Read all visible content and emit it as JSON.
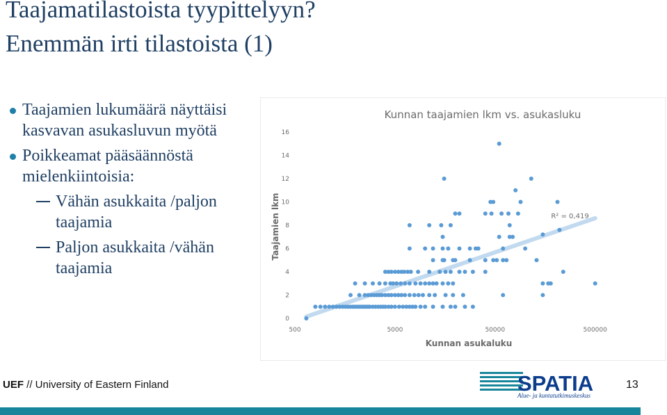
{
  "slide": {
    "title_line1": "Taajamatilastoista tyypittelyyn?",
    "title_line2": "Enemmän irti tilastoista (1)",
    "bullets": [
      "Taajamien lukumäärä näyttäisi kasvavan asukasluvun myötä",
      "Poikkeamat pääsäännöstä mielenkiintoisia:"
    ],
    "sub_bullets": [
      "Vähän asukkaita /paljon taajamia",
      "Paljon asukkaita /vähän taajamia"
    ],
    "footer_bold": "UEF",
    "footer_text": " // University of Eastern Finland",
    "page_number": "13",
    "logo_text": "SPATIA",
    "logo_subtitle": "Alue- ja kuntatutkimuskeskus",
    "colors": {
      "title": "#1f3f63",
      "accent": "#1f7fa9",
      "bar": "#17859a",
      "points": "#5b9bd5"
    }
  },
  "chart_data": {
    "type": "scatter",
    "title": "Kunnan taajamien lkm vs. asukasluku",
    "xlabel": "Kunnan asukaluku",
    "ylabel": "Taajamien lkm",
    "x_scale": "log",
    "xlim": [
      500,
      1000000
    ],
    "ylim": [
      0,
      16
    ],
    "x_ticks": [
      "500",
      "5000",
      "50000",
      "500000"
    ],
    "y_ticks": [
      "0",
      "2",
      "4",
      "6",
      "8",
      "10",
      "12",
      "14",
      "16"
    ],
    "trendline": {
      "type": "logarithmic",
      "r2_label": "R² = 0,419",
      "from": [
        650,
        0.15
      ],
      "to": [
        500000,
        8.6
      ]
    },
    "points": [
      [
        650,
        0
      ],
      [
        800,
        1
      ],
      [
        900,
        1
      ],
      [
        1000,
        1
      ],
      [
        1100,
        1
      ],
      [
        1200,
        1
      ],
      [
        1300,
        1
      ],
      [
        1400,
        1
      ],
      [
        1500,
        1
      ],
      [
        1600,
        1
      ],
      [
        1700,
        1
      ],
      [
        1800,
        1
      ],
      [
        1900,
        1
      ],
      [
        2000,
        1
      ],
      [
        2100,
        1
      ],
      [
        2200,
        1
      ],
      [
        2300,
        1
      ],
      [
        2400,
        1
      ],
      [
        2500,
        1
      ],
      [
        2600,
        1
      ],
      [
        2700,
        1
      ],
      [
        2800,
        1
      ],
      [
        3000,
        1
      ],
      [
        3200,
        1
      ],
      [
        3400,
        1
      ],
      [
        3600,
        1
      ],
      [
        3800,
        1
      ],
      [
        4000,
        1
      ],
      [
        4300,
        1
      ],
      [
        4600,
        1
      ],
      [
        5000,
        1
      ],
      [
        5500,
        1
      ],
      [
        6000,
        1
      ],
      [
        6500,
        1
      ],
      [
        7000,
        1
      ],
      [
        7500,
        1
      ],
      [
        8000,
        1
      ],
      [
        9000,
        1
      ],
      [
        10000,
        1
      ],
      [
        12000,
        1
      ],
      [
        15000,
        1
      ],
      [
        18000,
        1
      ],
      [
        20000,
        1
      ],
      [
        25000,
        1
      ],
      [
        30000,
        1
      ],
      [
        1800,
        2
      ],
      [
        2200,
        2
      ],
      [
        2500,
        2
      ],
      [
        2700,
        2
      ],
      [
        2900,
        2
      ],
      [
        3100,
        2
      ],
      [
        3300,
        2
      ],
      [
        3500,
        2
      ],
      [
        3700,
        2
      ],
      [
        4000,
        2
      ],
      [
        4300,
        2
      ],
      [
        4600,
        2
      ],
      [
        5000,
        2
      ],
      [
        5400,
        2
      ],
      [
        5800,
        2
      ],
      [
        6300,
        2
      ],
      [
        7000,
        2
      ],
      [
        7800,
        2
      ],
      [
        8600,
        2
      ],
      [
        9500,
        2
      ],
      [
        11000,
        2
      ],
      [
        12500,
        2
      ],
      [
        16000,
        2
      ],
      [
        19000,
        2
      ],
      [
        24000,
        2
      ],
      [
        60000,
        2
      ],
      [
        150000,
        2
      ],
      [
        2000,
        3
      ],
      [
        2500,
        3
      ],
      [
        3000,
        3
      ],
      [
        3500,
        3
      ],
      [
        4000,
        3
      ],
      [
        4500,
        3
      ],
      [
        4800,
        3
      ],
      [
        5200,
        3
      ],
      [
        5700,
        3
      ],
      [
        6300,
        3
      ],
      [
        7000,
        3
      ],
      [
        8000,
        3
      ],
      [
        9000,
        3
      ],
      [
        10000,
        3
      ],
      [
        11000,
        3
      ],
      [
        12000,
        3
      ],
      [
        13000,
        3
      ],
      [
        15000,
        3
      ],
      [
        17000,
        3
      ],
      [
        19000,
        3
      ],
      [
        150000,
        3
      ],
      [
        170000,
        3
      ],
      [
        180000,
        3
      ],
      [
        500000,
        3
      ],
      [
        4000,
        4
      ],
      [
        4300,
        4
      ],
      [
        4600,
        4
      ],
      [
        5000,
        4
      ],
      [
        5400,
        4
      ],
      [
        5800,
        4
      ],
      [
        6200,
        4
      ],
      [
        6700,
        4
      ],
      [
        7200,
        4
      ],
      [
        8500,
        4
      ],
      [
        11000,
        4
      ],
      [
        14000,
        4
      ],
      [
        16000,
        4
      ],
      [
        18000,
        4
      ],
      [
        22000,
        4
      ],
      [
        25000,
        4
      ],
      [
        30000,
        4
      ],
      [
        40000,
        4
      ],
      [
        240000,
        4
      ],
      [
        12000,
        5
      ],
      [
        15000,
        5
      ],
      [
        15500,
        5
      ],
      [
        19000,
        5
      ],
      [
        20000,
        5
      ],
      [
        28000,
        5
      ],
      [
        40000,
        5
      ],
      [
        48000,
        5
      ],
      [
        52000,
        5
      ],
      [
        60000,
        5
      ],
      [
        65000,
        5
      ],
      [
        130000,
        5
      ],
      [
        7000,
        6
      ],
      [
        10000,
        6
      ],
      [
        12000,
        6
      ],
      [
        15000,
        6
      ],
      [
        17000,
        6
      ],
      [
        22000,
        6
      ],
      [
        28000,
        6
      ],
      [
        32000,
        6
      ],
      [
        34000,
        6
      ],
      [
        60000,
        6
      ],
      [
        100000,
        6
      ],
      [
        15000,
        7
      ],
      [
        55000,
        7
      ],
      [
        70000,
        7
      ],
      [
        75000,
        7
      ],
      [
        150000,
        7.2
      ],
      [
        7000,
        8
      ],
      [
        11000,
        8
      ],
      [
        14500,
        8
      ],
      [
        18000,
        8
      ],
      [
        70000,
        8
      ],
      [
        220000,
        7.6
      ],
      [
        20000,
        9
      ],
      [
        22000,
        9
      ],
      [
        40000,
        9
      ],
      [
        46000,
        9
      ],
      [
        58000,
        9
      ],
      [
        68000,
        9
      ],
      [
        85000,
        9
      ],
      [
        45000,
        10
      ],
      [
        48000,
        10
      ],
      [
        90000,
        10
      ],
      [
        210000,
        10
      ],
      [
        80000,
        11
      ],
      [
        15500,
        12
      ],
      [
        115000,
        12
      ],
      [
        55000,
        15
      ]
    ]
  }
}
